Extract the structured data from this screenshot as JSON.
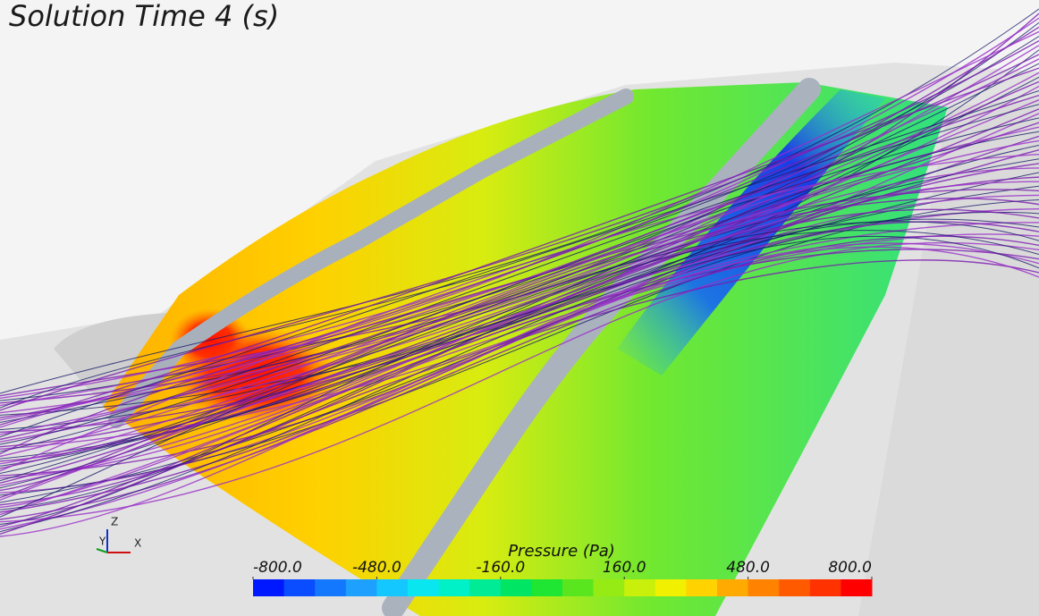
{
  "title": "Solution Time 4 (s)",
  "colorbar": {
    "title": "Pressure (Pa)",
    "lim": [
      -800,
      800
    ],
    "ticks": [
      {
        "value": -800,
        "label": "-800.0"
      },
      {
        "value": -480,
        "label": "-480.0"
      },
      {
        "value": -160,
        "label": "-160.0"
      },
      {
        "value": 160,
        "label": "160.0"
      },
      {
        "value": 480,
        "label": "480.0"
      },
      {
        "value": 800,
        "label": "800.0"
      }
    ],
    "colors": [
      "#0018ff",
      "#0a4cff",
      "#1478ff",
      "#1ea0ff",
      "#14c8ff",
      "#0ae6f0",
      "#00f0c8",
      "#00eb96",
      "#00e664",
      "#1ee632",
      "#5ae61e",
      "#96eb14",
      "#c8f00a",
      "#f0f000",
      "#ffd200",
      "#ffaa00",
      "#ff8200",
      "#ff5a00",
      "#ff3200",
      "#ff0000"
    ]
  },
  "triad": {
    "z": "Z",
    "y": "Y",
    "x": "X"
  }
}
